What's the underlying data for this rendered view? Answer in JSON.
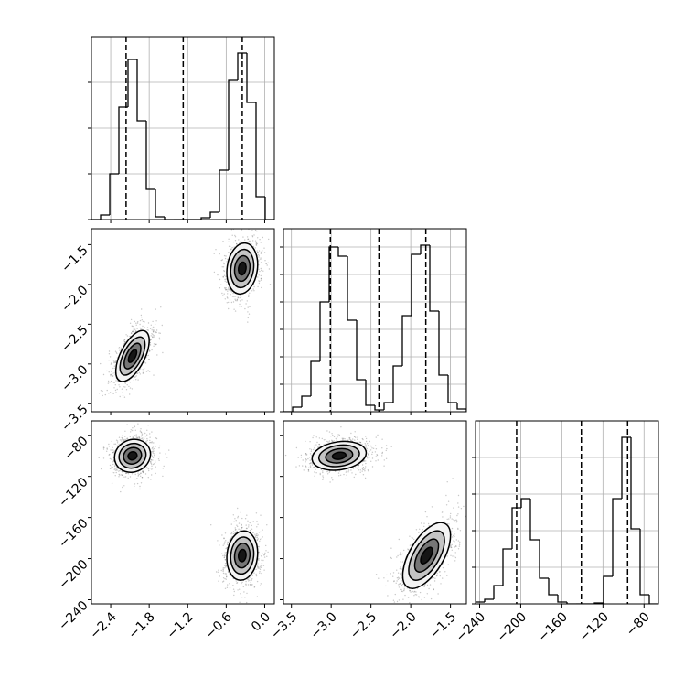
{
  "axes": [
    {
      "lim": [
        -2.7,
        0.15
      ],
      "ticks": [
        {
          "value": -2.4,
          "label": "−2.4"
        },
        {
          "value": -1.8,
          "label": "−1.8"
        },
        {
          "value": -1.2,
          "label": "−1.2"
        },
        {
          "value": -0.6,
          "label": "−0.6"
        },
        {
          "value": 0,
          "label": "0.0"
        }
      ]
    },
    {
      "lim": [
        -3.6,
        -1.3
      ],
      "ticks": [
        {
          "value": -3.5,
          "label": "−3.5"
        },
        {
          "value": -3.0,
          "label": "−3.0"
        },
        {
          "value": -2.5,
          "label": "−2.5"
        },
        {
          "value": -2.0,
          "label": "−2.0"
        },
        {
          "value": -1.5,
          "label": "−1.5"
        }
      ]
    },
    {
      "lim": [
        -244,
        -66
      ],
      "ticks": [
        {
          "value": -240,
          "label": "−240"
        },
        {
          "value": -200,
          "label": "−200"
        },
        {
          "value": -160,
          "label": "−160"
        },
        {
          "value": -120,
          "label": "−120"
        },
        {
          "value": -80,
          "label": "−80"
        }
      ]
    }
  ],
  "chart_data": [
    {
      "type": "histogram",
      "bins": [
        -2.7,
        -2.5575,
        -2.415,
        -2.2725,
        -2.13,
        -1.9875,
        -1.845,
        -1.7025,
        -1.56,
        -1.4175,
        -1.275,
        -1.1325,
        -0.99,
        -0.8475,
        -0.705,
        -0.5625,
        -0.42,
        -0.2775,
        -0.135,
        0.0075,
        0.15
      ],
      "values": [
        0,
        50,
        500,
        1230,
        1750,
        1080,
        330,
        30,
        0,
        0,
        0,
        0,
        20,
        80,
        540,
        1530,
        1820,
        1280,
        250,
        0
      ],
      "ylim": [
        0,
        2000
      ],
      "yticks": [
        0,
        500,
        1000,
        1500
      ],
      "quantiles": [
        -2.16,
        -1.27,
        -0.35
      ]
    },
    {
      "type": "density",
      "clusters": [
        {
          "x": -2.06,
          "y": -2.9,
          "sx": 0.13,
          "sy": 0.16,
          "rho": 0.6
        },
        {
          "x": -0.35,
          "y": -1.8,
          "sx": 0.12,
          "sy": 0.16,
          "rho": 0.15
        }
      ]
    },
    {
      "type": "histogram",
      "bins": [
        -3.6,
        -3.485,
        -3.37,
        -3.255,
        -3.14,
        -3.025,
        -2.91,
        -2.795,
        -2.68,
        -2.565,
        -2.45,
        -2.335,
        -2.22,
        -2.105,
        -1.99,
        -1.875,
        -1.76,
        -1.645,
        -1.53,
        -1.415,
        -1.3
      ],
      "values": [
        0,
        50,
        170,
        550,
        1200,
        1800,
        1700,
        1000,
        350,
        70,
        20,
        100,
        500,
        1050,
        1720,
        1820,
        1100,
        400,
        100,
        30
      ],
      "ylim": [
        0,
        2000
      ],
      "yticks": [
        0,
        300,
        600,
        900,
        1200,
        1500,
        1800
      ],
      "quantiles": [
        -3.01,
        -2.4,
        -1.81
      ]
    },
    {
      "type": "density",
      "clusters": [
        {
          "x": -2.06,
          "y": -100,
          "sx": 0.14,
          "sy": 8,
          "rho": 0.1
        },
        {
          "x": -0.35,
          "y": -197,
          "sx": 0.12,
          "sy": 12,
          "rho": 0.1
        }
      ]
    },
    {
      "type": "density",
      "clusters": [
        {
          "x": -2.9,
          "y": -100,
          "sx": 0.17,
          "sy": 7,
          "rho": 0.2
        },
        {
          "x": -1.8,
          "y": -197,
          "sx": 0.15,
          "sy": 16,
          "rho": 0.6
        }
      ]
    },
    {
      "type": "histogram",
      "bins": [
        -244,
        -235.1,
        -226.2,
        -217.3,
        -208.4,
        -199.5,
        -190.6,
        -181.7,
        -172.8,
        -163.9,
        -155,
        -146.1,
        -137.2,
        -128.3,
        -119.4,
        -110.5,
        -101.6,
        -92.7,
        -83.8,
        -74.9,
        -66
      ],
      "values": [
        20,
        50,
        200,
        600,
        1050,
        1150,
        700,
        280,
        100,
        20,
        0,
        0,
        0,
        10,
        300,
        1150,
        1820,
        820,
        100,
        0
      ],
      "ylim": [
        0,
        2000
      ],
      "yticks": [
        0,
        400,
        800,
        1200,
        1600
      ],
      "quantiles": [
        -204,
        -141,
        -96
      ]
    }
  ]
}
